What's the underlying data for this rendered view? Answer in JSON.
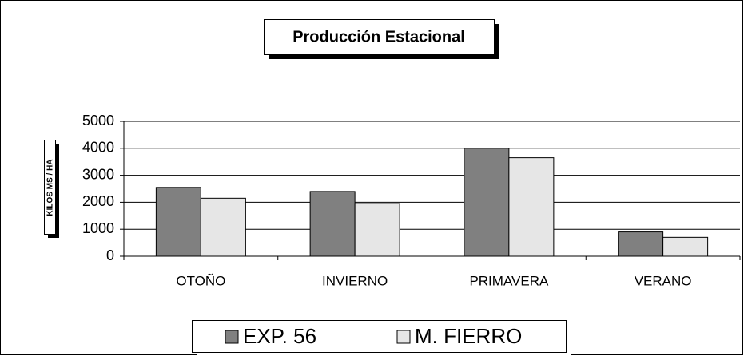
{
  "chart_data": {
    "type": "bar",
    "title": "Producción Estacional",
    "ylabel": "KILOS MS / HA",
    "categories": [
      "OTOÑO",
      "INVIERNO",
      "PRIMAVERA",
      "VERANO"
    ],
    "series": [
      {
        "name": "EXP. 56",
        "color": "#808080",
        "values": [
          2550,
          2400,
          4000,
          900
        ]
      },
      {
        "name": "M. FIERRO",
        "color": "#e6e6e6",
        "values": [
          2150,
          1950,
          3650,
          700
        ]
      }
    ],
    "ylim": [
      0,
      5000
    ],
    "yticks": [
      0,
      1000,
      2000,
      3000,
      4000,
      5000
    ],
    "grid": true,
    "legend": "bottom"
  }
}
